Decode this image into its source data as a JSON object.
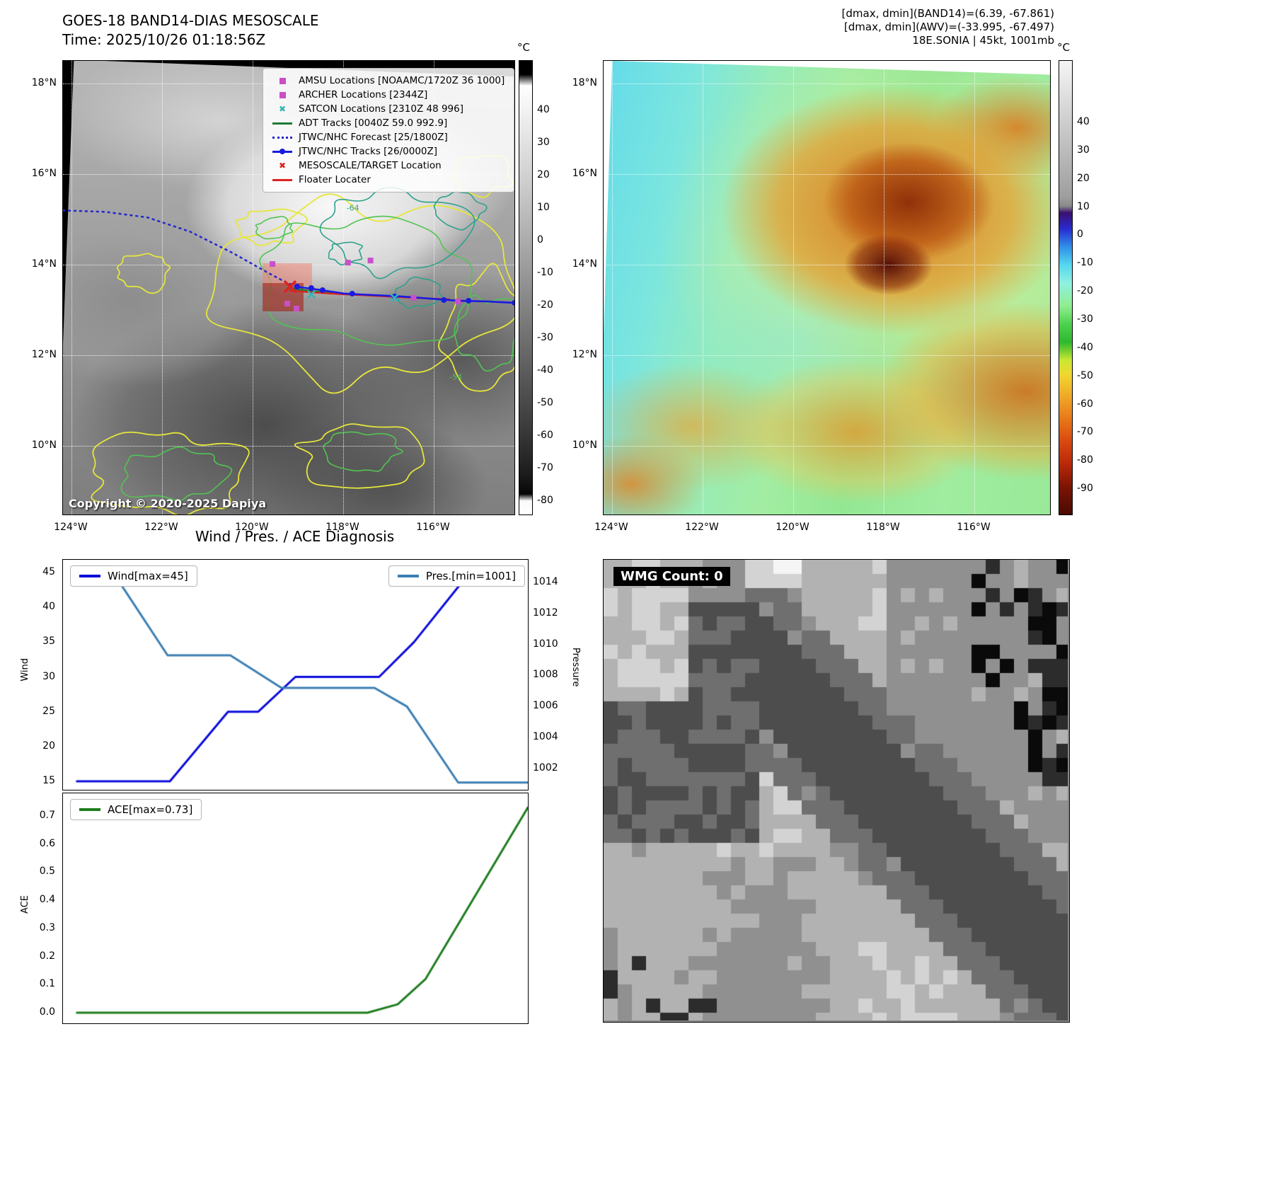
{
  "panel1": {
    "title_line1": "GOES-18 BAND14-DIAS MESOSCALE",
    "title_line2": "Time: 2025/10/26 01:18:56Z",
    "copyright": "Copyright © 2020-2025 Dapiya",
    "colorbar": {
      "unit": "°C",
      "ticks": [
        40,
        30,
        20,
        10,
        0,
        -10,
        -20,
        -30,
        -40,
        -50,
        -60,
        -70,
        -80
      ]
    },
    "lat_ticks": [
      "18°N",
      "16°N",
      "14°N",
      "12°N",
      "10°N"
    ],
    "lon_ticks": [
      "124°W",
      "122°W",
      "120°W",
      "118°W",
      "116°W"
    ],
    "contour_labels": [
      {
        "text": "-64"
      },
      {
        "text": "-54"
      }
    ],
    "legend": [
      {
        "label": "AMSU Locations [NOAAMC/1720Z 36 1000]",
        "marker": "square",
        "color": "#c94fc9"
      },
      {
        "label": "ARCHER Locations [2344Z]",
        "marker": "square",
        "color": "#c94fc9"
      },
      {
        "label": "SATCON Locations [2310Z 48 996]",
        "marker": "x",
        "color": "#35b5b5"
      },
      {
        "label": "ADT Tracks [0040Z 59.0 992.9]",
        "marker": "line",
        "color": "#1f7a33"
      },
      {
        "label": "JTWC/NHC Forecast [25/1800Z]",
        "marker": "dotted",
        "color": "#2929cc"
      },
      {
        "label": "JTWC/NHC Tracks [26/0000Z]",
        "marker": "line-dot",
        "color": "#1a1ae0"
      },
      {
        "label": "MESOSCALE/TARGET Location",
        "marker": "x",
        "color": "#dd2222"
      },
      {
        "label": "Floater Locater",
        "marker": "line",
        "color": "#dd2222"
      }
    ]
  },
  "panel2": {
    "header_line1": "[dmax, dmin](BAND14)=(6.39, -67.861)",
    "header_line2": "[dmax, dmin](AWV)=(-33.995, -67.497)",
    "header_line3": "18E.SONIA | 45kt, 1001mb",
    "colorbar": {
      "unit": "°C",
      "ticks": [
        40,
        30,
        20,
        10,
        0,
        -10,
        -20,
        -30,
        -40,
        -50,
        -60,
        -70,
        -80,
        -90
      ]
    },
    "lat_ticks": [
      "18°N",
      "16°N",
      "14°N",
      "12°N",
      "10°N"
    ],
    "lon_ticks": [
      "124°W",
      "122°W",
      "120°W",
      "118°W",
      "116°W"
    ]
  },
  "charts_title": "Wind / Pres. / ACE Diagnosis",
  "chart_data": [
    {
      "type": "line",
      "title": "Wind / Pres. / ACE Diagnosis",
      "ylabel_left": "Wind",
      "ylabel_right": "Pressure",
      "yticks_left": [
        45,
        40,
        35,
        30,
        25,
        20,
        15
      ],
      "yticks_right": [
        1014,
        1012,
        1010,
        1008,
        1006,
        1004,
        1002
      ],
      "ylim_left": [
        13.8,
        46.1
      ],
      "ylim_right": [
        1000.6,
        1015.3
      ],
      "legend_position": "upper-left and upper-right",
      "series": [
        {
          "name": "Wind[max=45]",
          "axis": "left",
          "color": "#0b0bdc",
          "points": [
            [
              0.03,
              15
            ],
            [
              0.23,
              15
            ],
            [
              0.355,
              25
            ],
            [
              0.42,
              25
            ],
            [
              0.5,
              30
            ],
            [
              0.68,
              30
            ],
            [
              0.755,
              35
            ],
            [
              0.875,
              45
            ]
          ]
        },
        {
          "name": "Pres.[min=1001]",
          "axis": "right",
          "color": "#3b7fb4",
          "points": [
            [
              0.03,
              1015
            ],
            [
              0.1,
              1015
            ],
            [
              0.225,
              1009.3
            ],
            [
              0.36,
              1009.3
            ],
            [
              0.47,
              1007.2
            ],
            [
              0.67,
              1007.2
            ],
            [
              0.74,
              1006
            ],
            [
              0.85,
              1001.1
            ],
            [
              1.0,
              1001.1
            ]
          ]
        }
      ]
    },
    {
      "type": "line",
      "ylabel_left": "ACE",
      "yticks_left": [
        0.7,
        0.6,
        0.5,
        0.4,
        0.3,
        0.2,
        0.1,
        0.0
      ],
      "ylim": [
        -0.04,
        0.77
      ],
      "legend_position": "upper-left",
      "series": [
        {
          "name": "ACE[max=0.73]",
          "axis": "left",
          "color": "#1e7d1e",
          "points": [
            [
              0.03,
              0.0
            ],
            [
              0.655,
              0.0
            ],
            [
              0.72,
              0.03
            ],
            [
              0.78,
              0.12
            ],
            [
              1.0,
              0.73
            ]
          ]
        }
      ]
    }
  ],
  "panel4": {
    "label": "WMG Count: 0"
  }
}
